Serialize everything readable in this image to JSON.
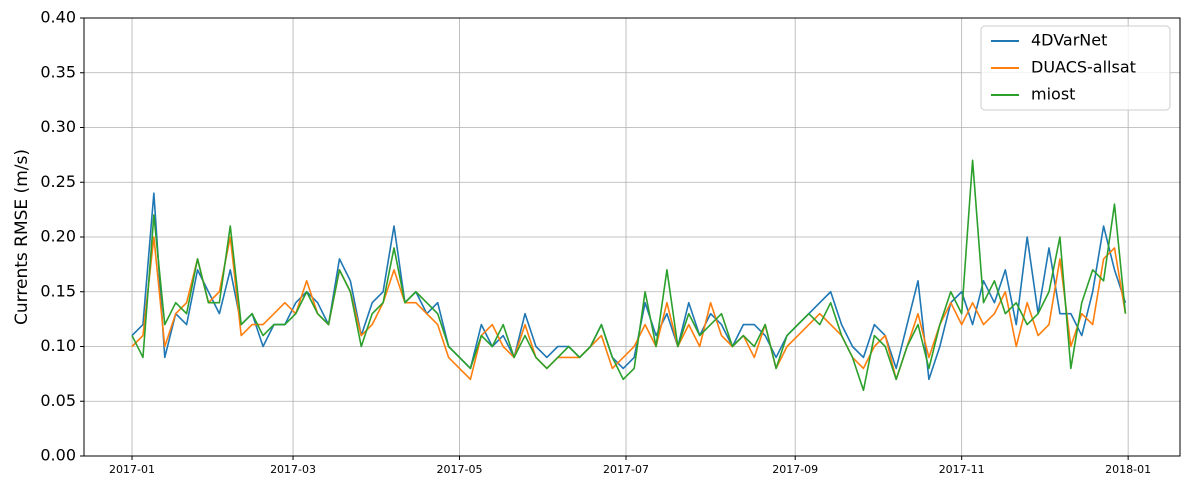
{
  "chart_data": {
    "type": "line",
    "y_label": "Currents RMSE (m/s)",
    "x": [
      0,
      4,
      8,
      12,
      16,
      20,
      24,
      28,
      32,
      36,
      40,
      44,
      48,
      52,
      56,
      60,
      64,
      68,
      72,
      76,
      80,
      84,
      88,
      92,
      96,
      100,
      104,
      108,
      112,
      116,
      120,
      124,
      128,
      132,
      136,
      140,
      144,
      148,
      152,
      156,
      160,
      164,
      168,
      172,
      176,
      180,
      184,
      188,
      192,
      196,
      200,
      204,
      208,
      212,
      216,
      220,
      224,
      228,
      232,
      236,
      240,
      244,
      248,
      252,
      256,
      260,
      264,
      268,
      272,
      276,
      280,
      284,
      288,
      292,
      296,
      300,
      304,
      308,
      312,
      316,
      320,
      324,
      328,
      332,
      336,
      340,
      344,
      348,
      352,
      356,
      360,
      364
    ],
    "series": [
      {
        "name": "4DVarNet",
        "color": "#1f77b4",
        "values": [
          0.11,
          0.12,
          0.24,
          0.09,
          0.13,
          0.12,
          0.17,
          0.15,
          0.13,
          0.17,
          0.12,
          0.13,
          0.1,
          0.12,
          0.12,
          0.14,
          0.15,
          0.14,
          0.12,
          0.18,
          0.16,
          0.11,
          0.14,
          0.15,
          0.21,
          0.14,
          0.15,
          0.13,
          0.14,
          0.1,
          0.09,
          0.08,
          0.12,
          0.1,
          0.11,
          0.09,
          0.13,
          0.1,
          0.09,
          0.1,
          0.1,
          0.09,
          0.1,
          0.12,
          0.09,
          0.08,
          0.09,
          0.14,
          0.11,
          0.13,
          0.1,
          0.14,
          0.11,
          0.13,
          0.12,
          0.1,
          0.12,
          0.12,
          0.11,
          0.09,
          0.11,
          0.12,
          0.13,
          0.14,
          0.15,
          0.12,
          0.1,
          0.09,
          0.12,
          0.11,
          0.08,
          0.12,
          0.16,
          0.07,
          0.1,
          0.14,
          0.15,
          0.12,
          0.16,
          0.14,
          0.17,
          0.12,
          0.2,
          0.13,
          0.19,
          0.13,
          0.13,
          0.11,
          0.15,
          0.21,
          0.17,
          0.14
        ]
      },
      {
        "name": "DUACS-allsat",
        "color": "#ff7f0e",
        "values": [
          0.1,
          0.11,
          0.2,
          0.1,
          0.13,
          0.14,
          0.18,
          0.14,
          0.15,
          0.2,
          0.11,
          0.12,
          0.12,
          0.13,
          0.14,
          0.13,
          0.16,
          0.13,
          0.12,
          0.17,
          0.15,
          0.11,
          0.12,
          0.14,
          0.17,
          0.14,
          0.14,
          0.13,
          0.12,
          0.09,
          0.08,
          0.07,
          0.11,
          0.12,
          0.1,
          0.09,
          0.12,
          0.09,
          0.08,
          0.09,
          0.09,
          0.09,
          0.1,
          0.11,
          0.08,
          0.09,
          0.1,
          0.12,
          0.1,
          0.14,
          0.1,
          0.12,
          0.1,
          0.14,
          0.11,
          0.1,
          0.11,
          0.09,
          0.12,
          0.08,
          0.1,
          0.11,
          0.12,
          0.13,
          0.12,
          0.11,
          0.09,
          0.08,
          0.1,
          0.11,
          0.07,
          0.1,
          0.13,
          0.09,
          0.12,
          0.14,
          0.12,
          0.14,
          0.12,
          0.13,
          0.15,
          0.1,
          0.14,
          0.11,
          0.12,
          0.18,
          0.1,
          0.13,
          0.12,
          0.18,
          0.19,
          0.13
        ]
      },
      {
        "name": "miost",
        "color": "#2ca02c",
        "values": [
          0.11,
          0.09,
          0.22,
          0.12,
          0.14,
          0.13,
          0.18,
          0.14,
          0.14,
          0.21,
          0.12,
          0.13,
          0.11,
          0.12,
          0.12,
          0.13,
          0.15,
          0.13,
          0.12,
          0.17,
          0.15,
          0.1,
          0.13,
          0.14,
          0.19,
          0.14,
          0.15,
          0.14,
          0.13,
          0.1,
          0.09,
          0.08,
          0.11,
          0.1,
          0.12,
          0.09,
          0.11,
          0.09,
          0.08,
          0.09,
          0.1,
          0.09,
          0.1,
          0.12,
          0.09,
          0.07,
          0.08,
          0.15,
          0.1,
          0.17,
          0.1,
          0.13,
          0.11,
          0.12,
          0.13,
          0.1,
          0.11,
          0.1,
          0.12,
          0.08,
          0.11,
          0.12,
          0.13,
          0.12,
          0.14,
          0.11,
          0.09,
          0.06,
          0.11,
          0.1,
          0.07,
          0.1,
          0.12,
          0.08,
          0.12,
          0.15,
          0.13,
          0.27,
          0.14,
          0.16,
          0.13,
          0.14,
          0.12,
          0.13,
          0.15,
          0.2,
          0.08,
          0.14,
          0.17,
          0.16,
          0.23,
          0.13
        ]
      }
    ],
    "xlim": [
      -17.6,
      384
    ],
    "xticks": [
      {
        "value": 0,
        "label": "2017-01"
      },
      {
        "value": 59,
        "label": "2017-03"
      },
      {
        "value": 120,
        "label": "2017-05"
      },
      {
        "value": 181,
        "label": "2017-07"
      },
      {
        "value": 243,
        "label": "2017-09"
      },
      {
        "value": 304,
        "label": "2017-11"
      },
      {
        "value": 365,
        "label": "2018-01"
      }
    ],
    "ylim": [
      0,
      0.4
    ],
    "yticks": [
      {
        "value": 0,
        "label": "0.00"
      },
      {
        "value": 0.05,
        "label": "0.05"
      },
      {
        "value": 0.1,
        "label": "0.10"
      },
      {
        "value": 0.15,
        "label": "0.15"
      },
      {
        "value": 0.2,
        "label": "0.20"
      },
      {
        "value": 0.25,
        "label": "0.25"
      },
      {
        "value": 0.3,
        "label": "0.30"
      },
      {
        "value": 0.35,
        "label": "0.35"
      },
      {
        "value": 0.4,
        "label": "0.40"
      }
    ],
    "grid": true,
    "legend": "upper right"
  }
}
